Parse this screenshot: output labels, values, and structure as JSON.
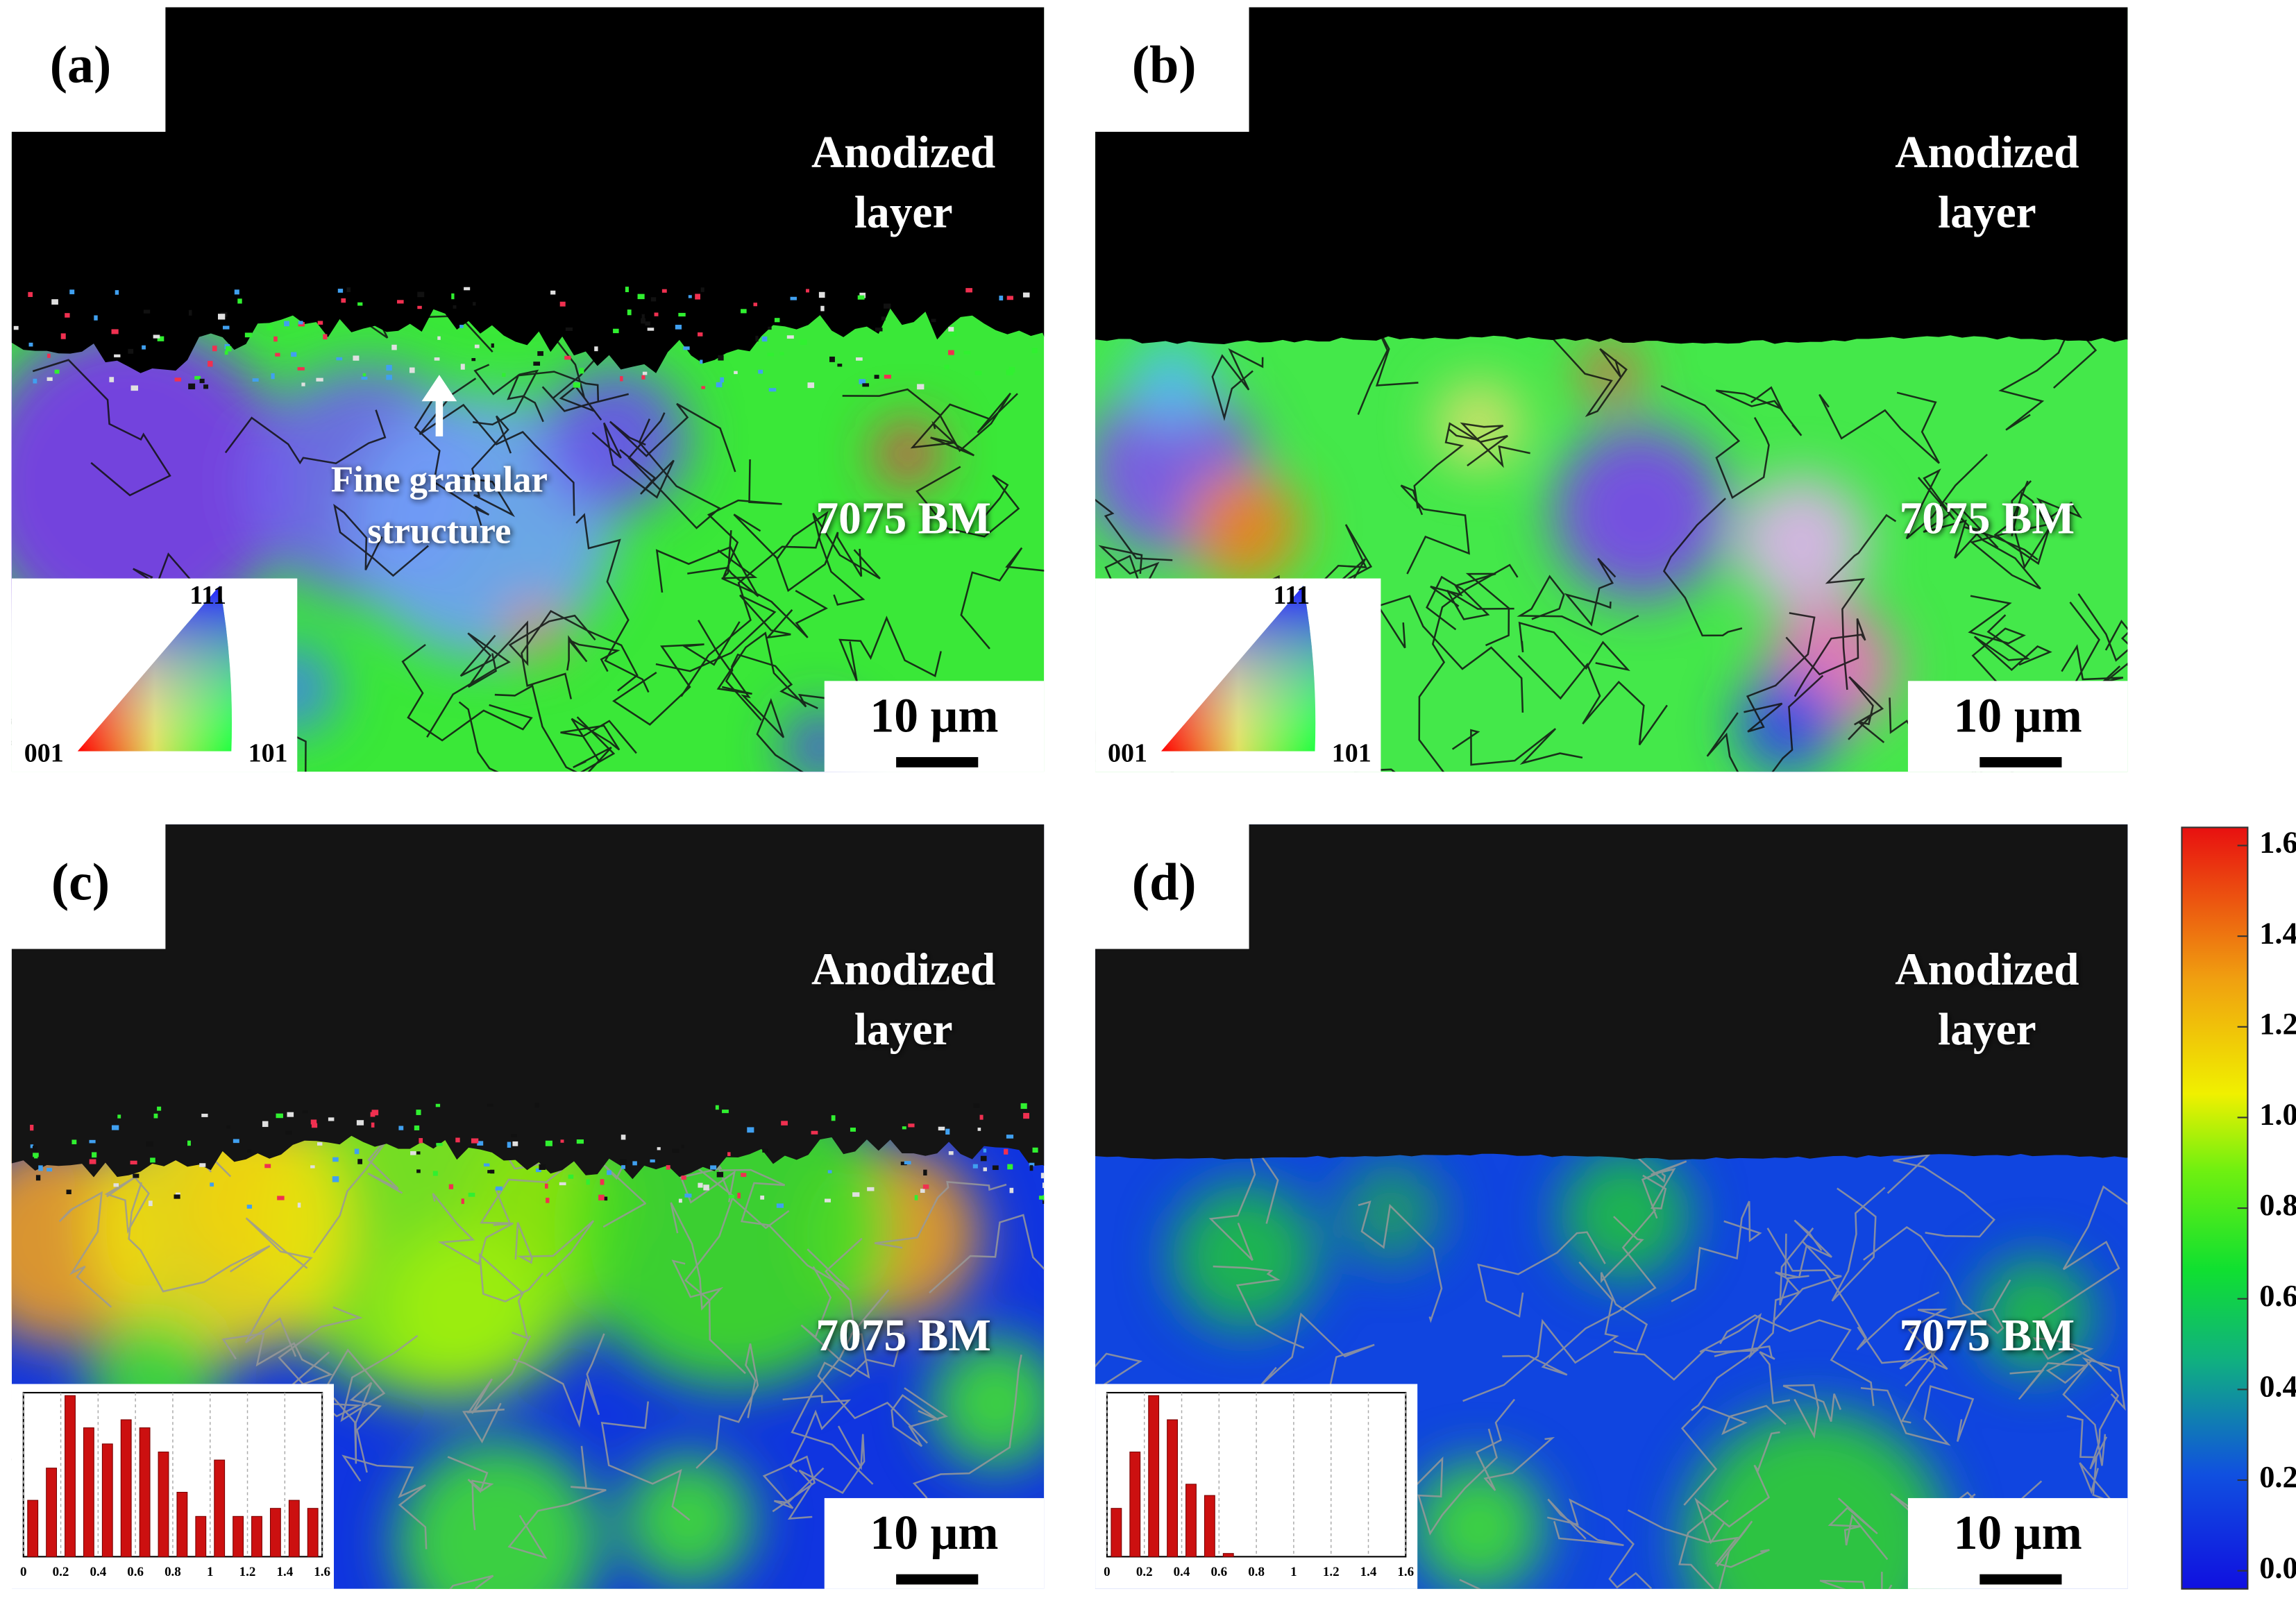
{
  "panels": [
    {
      "label": "(a)",
      "layer_text": [
        "Anodized",
        "layer"
      ],
      "annotation": [
        "Fine granular",
        "structure"
      ],
      "material": "7075 BM",
      "scale_bar": "10 µm",
      "ipf_legend": {
        "top": "111",
        "left": "001",
        "right": "101"
      }
    },
    {
      "label": "(b)",
      "layer_text": [
        "Anodized",
        "layer"
      ],
      "material": "7075 BM",
      "scale_bar": "10 µm",
      "ipf_legend": {
        "top": "111",
        "left": "001",
        "right": "101"
      }
    },
    {
      "label": "(c)",
      "layer_text": [
        "Anodized",
        "layer"
      ],
      "material": "7075 BM",
      "scale_bar": "10 µm",
      "histogram": {
        "bins": [
          0,
          0.1,
          0.2,
          0.3,
          0.4,
          0.5,
          0.6,
          0.7,
          0.8,
          0.9,
          1,
          1.1,
          1.2,
          1.3,
          1.4,
          1.5,
          1.6
        ],
        "values": [
          0.35,
          0.55,
          1,
          0.8,
          0.7,
          0.85,
          0.8,
          0.65,
          0.4,
          0.25,
          0.6,
          0.25,
          0.25,
          0.3,
          0.35,
          0.3
        ],
        "xticks": [
          0,
          0.2,
          0.4,
          0.6,
          0.8,
          1,
          1.2,
          1.4,
          1.6
        ]
      }
    },
    {
      "label": "(d)",
      "layer_text": [
        "Anodized",
        "layer"
      ],
      "material": "7075 BM",
      "scale_bar": "10 µm",
      "histogram": {
        "bins": [
          0,
          0.1,
          0.2,
          0.3,
          0.4,
          0.5,
          0.6,
          0.7,
          0.8,
          0.9,
          1,
          1.1,
          1.2,
          1.3,
          1.4,
          1.5,
          1.6
        ],
        "values": [
          0.3,
          0.65,
          1,
          0.85,
          0.45,
          0.38,
          0.02,
          0,
          0,
          0,
          0,
          0,
          0,
          0,
          0,
          0
        ],
        "xticks": [
          0,
          0.2,
          0.4,
          0.6,
          0.8,
          1,
          1.2,
          1.4,
          1.6
        ]
      }
    }
  ],
  "colorbar": {
    "lim": [
      -0.04,
      1.64
    ],
    "ticks": [
      {
        "value": 0,
        "label": "0.0"
      },
      0.2,
      0.4,
      0.6,
      0.8,
      {
        "value": 1,
        "label": "1.0"
      },
      1.2,
      1.4,
      1.6
    ]
  }
}
